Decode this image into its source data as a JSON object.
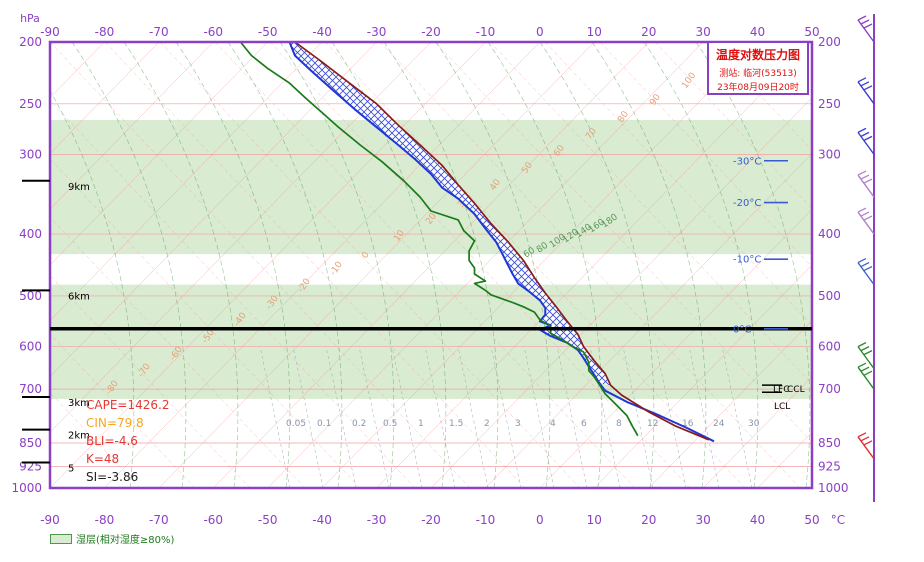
{
  "chart_data": {
    "type": "line",
    "title": "温度对数压力图",
    "station_label": "测站: 临河(53513)",
    "time_label": "23年08月09日20时",
    "y_axis_label": "hPa",
    "x_axis_unit": "°C",
    "xlim": [
      -90,
      50
    ],
    "ylim": [
      200,
      1000
    ],
    "y_scale": "log-pressure",
    "x_ticks": [
      -90,
      -80,
      -70,
      -60,
      -50,
      -40,
      -30,
      -20,
      -10,
      0,
      10,
      20,
      30,
      40,
      50
    ],
    "pressure_levels": [
      200,
      250,
      300,
      400,
      500,
      600,
      700,
      850,
      925,
      1000
    ],
    "height_markers": [
      {
        "label": "9km",
        "p": 330
      },
      {
        "label": "6km",
        "p": 490
      },
      {
        "label": "3km",
        "p": 720
      },
      {
        "label": "2km",
        "p": 810
      },
      {
        "label": "5",
        "p": 912
      }
    ],
    "humid_bands": [
      {
        "p_top": 265,
        "p_bottom": 430
      },
      {
        "p_top": 480,
        "p_bottom": 725
      }
    ],
    "humid_legend": "湿层(相对湿度≥80%)",
    "series": [
      {
        "role": "temperature",
        "color": "#1f37d6",
        "points": [
          [
            -46,
            200
          ],
          [
            -45,
            210
          ],
          [
            -42,
            222
          ],
          [
            -38,
            238
          ],
          [
            -34,
            255
          ],
          [
            -30,
            272
          ],
          [
            -26,
            290
          ],
          [
            -23,
            305
          ],
          [
            -20,
            322
          ],
          [
            -18,
            338
          ],
          [
            -15,
            352
          ],
          [
            -12,
            372
          ],
          [
            -10,
            392
          ],
          [
            -8,
            412
          ],
          [
            -7,
            428
          ],
          [
            -6,
            445
          ],
          [
            -5,
            462
          ],
          [
            -4,
            478
          ],
          [
            -2,
            492
          ],
          [
            0,
            508
          ],
          [
            1,
            522
          ],
          [
            1,
            535
          ],
          [
            0,
            548
          ],
          [
            2,
            556
          ],
          [
            0,
            565
          ],
          [
            2,
            578
          ],
          [
            5,
            592
          ],
          [
            7,
            608
          ],
          [
            8,
            625
          ],
          [
            9,
            645
          ],
          [
            10,
            665
          ],
          [
            11,
            686
          ],
          [
            12,
            704
          ],
          [
            16,
            733
          ],
          [
            22,
            770
          ],
          [
            27,
            805
          ],
          [
            32,
            845
          ]
        ]
      },
      {
        "role": "dewpoint",
        "color": "#1a7a1a",
        "points": [
          [
            -55,
            200
          ],
          [
            -53,
            210
          ],
          [
            -50,
            220
          ],
          [
            -46,
            232
          ],
          [
            -43,
            245
          ],
          [
            -40,
            258
          ],
          [
            -37,
            272
          ],
          [
            -33,
            290
          ],
          [
            -29,
            308
          ],
          [
            -25,
            330
          ],
          [
            -22,
            350
          ],
          [
            -20,
            368
          ],
          [
            -15,
            380
          ],
          [
            -14,
            395
          ],
          [
            -12,
            410
          ],
          [
            -13,
            425
          ],
          [
            -13,
            440
          ],
          [
            -12,
            452
          ],
          [
            -12,
            462
          ],
          [
            -10,
            474
          ],
          [
            -12,
            478
          ],
          [
            -11,
            484
          ],
          [
            -10,
            490
          ],
          [
            -9,
            498
          ],
          [
            -7,
            505
          ],
          [
            -5,
            512
          ],
          [
            -3,
            520
          ],
          [
            -1,
            530
          ],
          [
            0,
            545
          ],
          [
            2,
            558
          ],
          [
            2,
            572
          ],
          [
            4,
            585
          ],
          [
            6,
            600
          ],
          [
            8,
            612
          ],
          [
            9,
            635
          ],
          [
            9,
            655
          ],
          [
            10,
            670
          ],
          [
            11,
            690
          ],
          [
            12,
            712
          ],
          [
            14,
            740
          ],
          [
            16,
            770
          ],
          [
            17,
            800
          ],
          [
            18,
            828
          ]
        ]
      },
      {
        "role": "parcel-path",
        "color": "#8b1a1a",
        "points": [
          [
            -45,
            200
          ],
          [
            -40,
            215
          ],
          [
            -35,
            232
          ],
          [
            -30,
            250
          ],
          [
            -26,
            270
          ],
          [
            -22,
            290
          ],
          [
            -18,
            312
          ],
          [
            -15,
            335
          ],
          [
            -12,
            358
          ],
          [
            -9,
            385
          ],
          [
            -6,
            410
          ],
          [
            -3,
            440
          ],
          [
            -1,
            468
          ],
          [
            1,
            495
          ],
          [
            3,
            520
          ],
          [
            5,
            548
          ],
          [
            7,
            575
          ],
          [
            8,
            600
          ],
          [
            10,
            632
          ],
          [
            12,
            662
          ],
          [
            13,
            690
          ],
          [
            15,
            715
          ],
          [
            20,
            760
          ],
          [
            25,
            800
          ],
          [
            31,
            840
          ]
        ]
      }
    ],
    "isotherm_markers": [
      {
        "label": "-30°C",
        "p": 307
      },
      {
        "label": "-20°C",
        "p": 357
      },
      {
        "label": "-10°C",
        "p": 438
      },
      {
        "label": "0°C",
        "p": 563
      }
    ],
    "level_markers": [
      "LFC",
      "CCL",
      "LCL"
    ],
    "indices": [
      {
        "text": "CAPE=1426.2",
        "color": "#e53935"
      },
      {
        "text": "CIN=79.8",
        "color": "#f5a623"
      },
      {
        "text": "BLI=-4.6",
        "color": "#e53935"
      },
      {
        "text": "K=48",
        "color": "#e53935"
      },
      {
        "text": "SI=-3.86",
        "color": "#222222"
      }
    ],
    "mixing_ratio_labels": [
      "0.05",
      "0.1",
      "0.2",
      "0.5",
      "1",
      "1.5",
      "2",
      "3",
      "4",
      "6",
      "8",
      "12",
      "16",
      "24",
      "30"
    ],
    "mixing_ratio_upper_labels": [
      "60",
      "80",
      "100",
      "120",
      "140",
      "160",
      "180"
    ],
    "dry_adiabat_labels": [
      "-80",
      "-70",
      "-60",
      "-50",
      "-40",
      "-30",
      "-20",
      "-10",
      "0",
      "10",
      "20",
      "30",
      "40",
      "50",
      "60",
      "70",
      "80",
      "90",
      "100"
    ],
    "colors": {
      "frame": "#8b3fc4",
      "axis_text": "#8b3fc4",
      "humid_band": "#d9ebd1",
      "isotherm": "#f08080",
      "dry_adiabat": "#f08080",
      "moist_adiabat": "#4a9a4a",
      "mixing_ratio": "#9aa7b8",
      "cape_hatch": "#1f37d6",
      "title_red": "#d11"
    }
  }
}
